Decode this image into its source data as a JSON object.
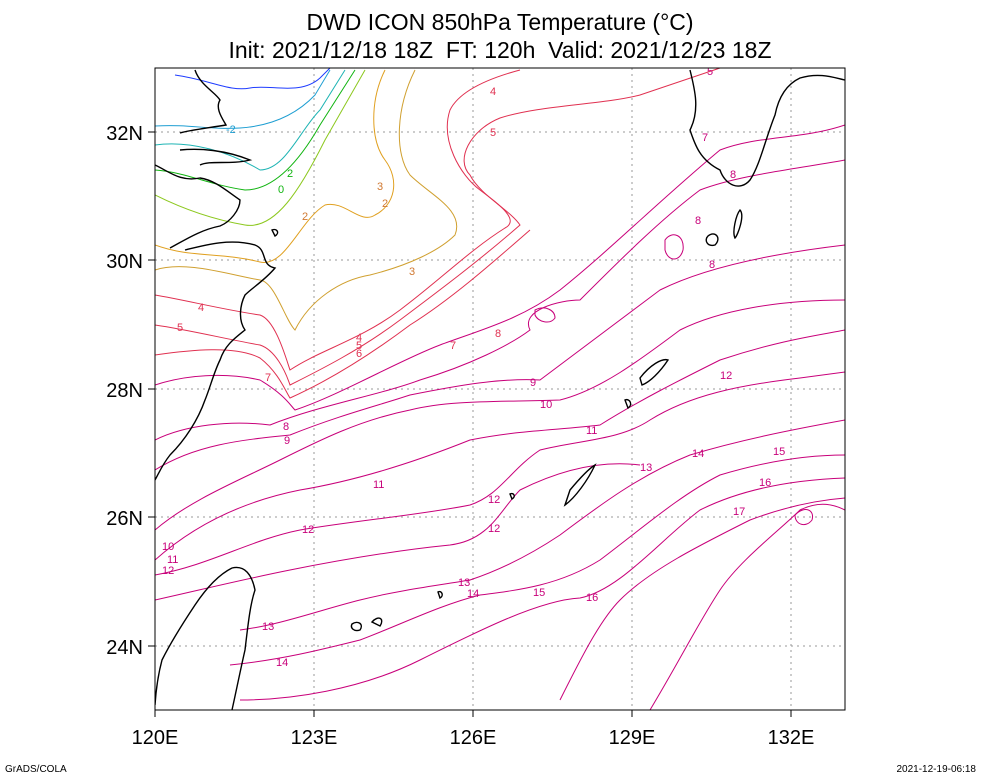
{
  "title": {
    "line1": "DWD ICON 850hPa Temperature (°C)",
    "line2": "Init: 2021/12/18 18Z  FT: 120h  Valid: 2021/12/23 18Z"
  },
  "map": {
    "lat_range": [
      23,
      33
    ],
    "lon_range": [
      120,
      133
    ],
    "lat_labels": [
      "24N",
      "26N",
      "28N",
      "30N",
      "32N"
    ],
    "lon_labels": [
      "120E",
      "123E",
      "126E",
      "129E",
      "132E"
    ],
    "gridlines": "dotted"
  },
  "contours": {
    "levels": [
      "-2",
      "-1",
      "0",
      "1",
      "2",
      "3",
      "4",
      "5",
      "6",
      "7",
      "8",
      "9",
      "10",
      "11",
      "12",
      "13",
      "14",
      "15",
      "16",
      "17"
    ],
    "colors": {
      "cold": "#1e3cff",
      "cyan": "#1e9ed2",
      "green": "#10b410",
      "yellowgreen": "#8cc81e",
      "orange": "#e0a020",
      "brown": "#d07830",
      "red": "#e03050",
      "magenta": "#c8007a",
      "coast": "#000000"
    }
  },
  "footer": {
    "left": "GrADS/COLA",
    "right": "2021-12-19-06:18"
  }
}
